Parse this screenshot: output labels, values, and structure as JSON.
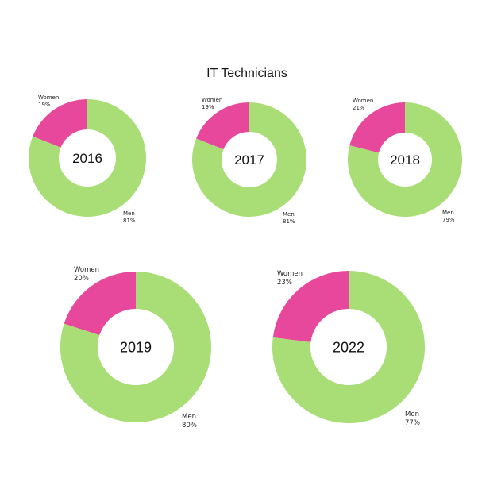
{
  "title": "IT Technicians",
  "colors": {
    "men": "#a9dd75",
    "women": "#e8489c"
  },
  "chart_data": {
    "type": "pie",
    "title": "IT Technicians",
    "series": [
      {
        "year": "2016",
        "slices": [
          {
            "label": "Women",
            "value": 19,
            "display": "19%"
          },
          {
            "label": "Men",
            "value": 81,
            "display": "81%"
          }
        ]
      },
      {
        "year": "2017",
        "slices": [
          {
            "label": "Women",
            "value": 19,
            "display": "19%"
          },
          {
            "label": "Men",
            "value": 81,
            "display": "81%"
          }
        ]
      },
      {
        "year": "2018",
        "slices": [
          {
            "label": "Women",
            "value": 21,
            "display": "21%"
          },
          {
            "label": "Men",
            "value": 79,
            "display": "79%"
          }
        ]
      },
      {
        "year": "2019",
        "slices": [
          {
            "label": "Women",
            "value": 20,
            "display": "20%"
          },
          {
            "label": "Men",
            "value": 80,
            "display": "80%"
          }
        ]
      },
      {
        "year": "2022",
        "slices": [
          {
            "label": "Women",
            "value": 23,
            "display": "23%"
          },
          {
            "label": "Men",
            "value": 77,
            "display": "77%"
          }
        ]
      }
    ]
  }
}
